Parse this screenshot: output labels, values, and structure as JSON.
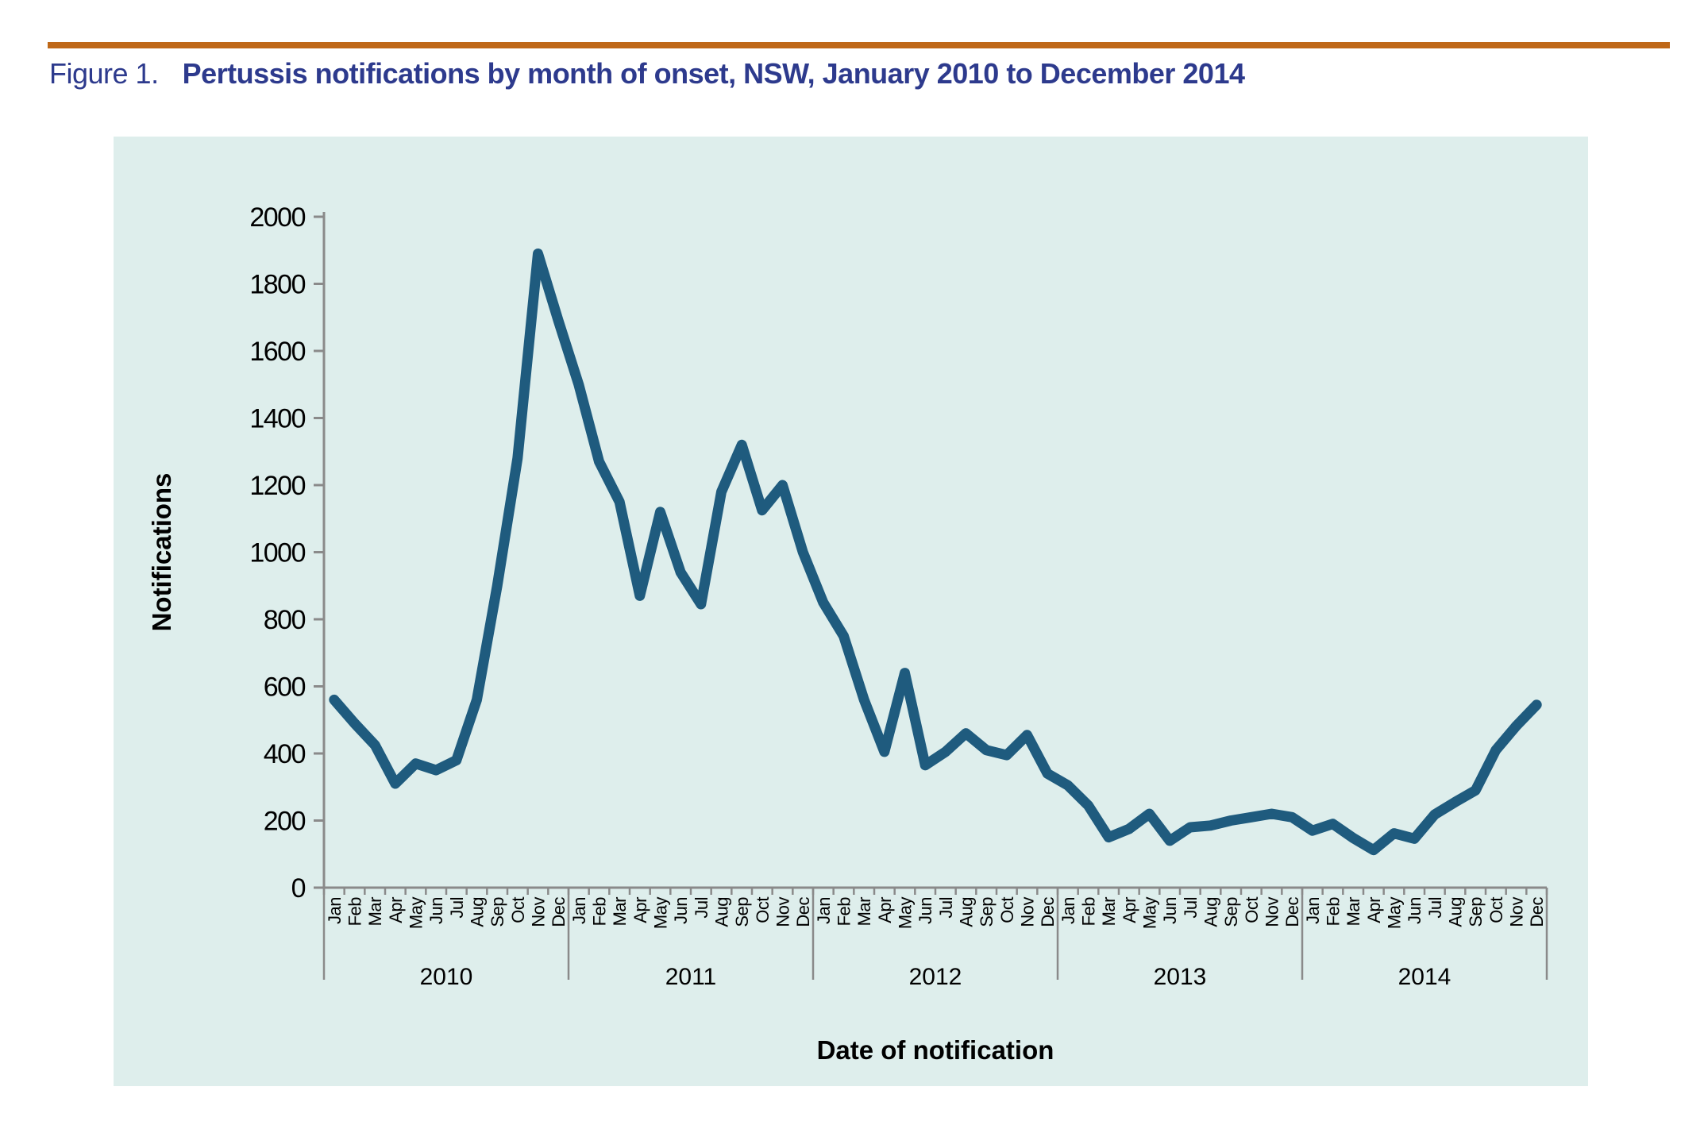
{
  "header": {
    "figure_label": "Figure 1.",
    "title": "Pertussis notifications by month of onset, NSW, January 2010 to December 2014"
  },
  "colors": {
    "accent_rule": "#bf6818",
    "title_text": "#2d3a8d",
    "panel_background": "#deeeec",
    "line": "#1f5b7e",
    "axis": "#8a8a8a",
    "label_text": "#000000"
  },
  "chart_data": {
    "type": "line",
    "title": "Pertussis notifications by month of onset, NSW, January 2010 to December 2014",
    "xlabel": "Date of notification",
    "ylabel": "Notifications",
    "ylim": [
      0,
      2000
    ],
    "ytick_interval": 200,
    "ytick_labels": [
      "0",
      "200",
      "400",
      "600",
      "800",
      "1000",
      "1200",
      "1400",
      "1600",
      "1800",
      "2000"
    ],
    "month_labels": [
      "Jan",
      "Feb",
      "Mar",
      "Apr",
      "May",
      "Jun",
      "Jul",
      "Aug",
      "Sep",
      "Oct",
      "Nov",
      "Dec"
    ],
    "year_labels": [
      "2010",
      "2011",
      "2012",
      "2013",
      "2014"
    ],
    "grid": false,
    "legend": false,
    "series": [
      {
        "name": "Pertussis notifications",
        "values": [
          560,
          490,
          425,
          310,
          370,
          350,
          380,
          560,
          900,
          1280,
          1890,
          1690,
          1500,
          1270,
          1150,
          870,
          1120,
          940,
          845,
          1180,
          1320,
          1125,
          1200,
          1000,
          850,
          750,
          560,
          405,
          640,
          365,
          405,
          460,
          410,
          395,
          455,
          340,
          305,
          245,
          150,
          175,
          220,
          140,
          180,
          185,
          200,
          210,
          220,
          210,
          170,
          190,
          148,
          112,
          162,
          146,
          218,
          255,
          290,
          410,
          482,
          545
        ]
      }
    ]
  }
}
